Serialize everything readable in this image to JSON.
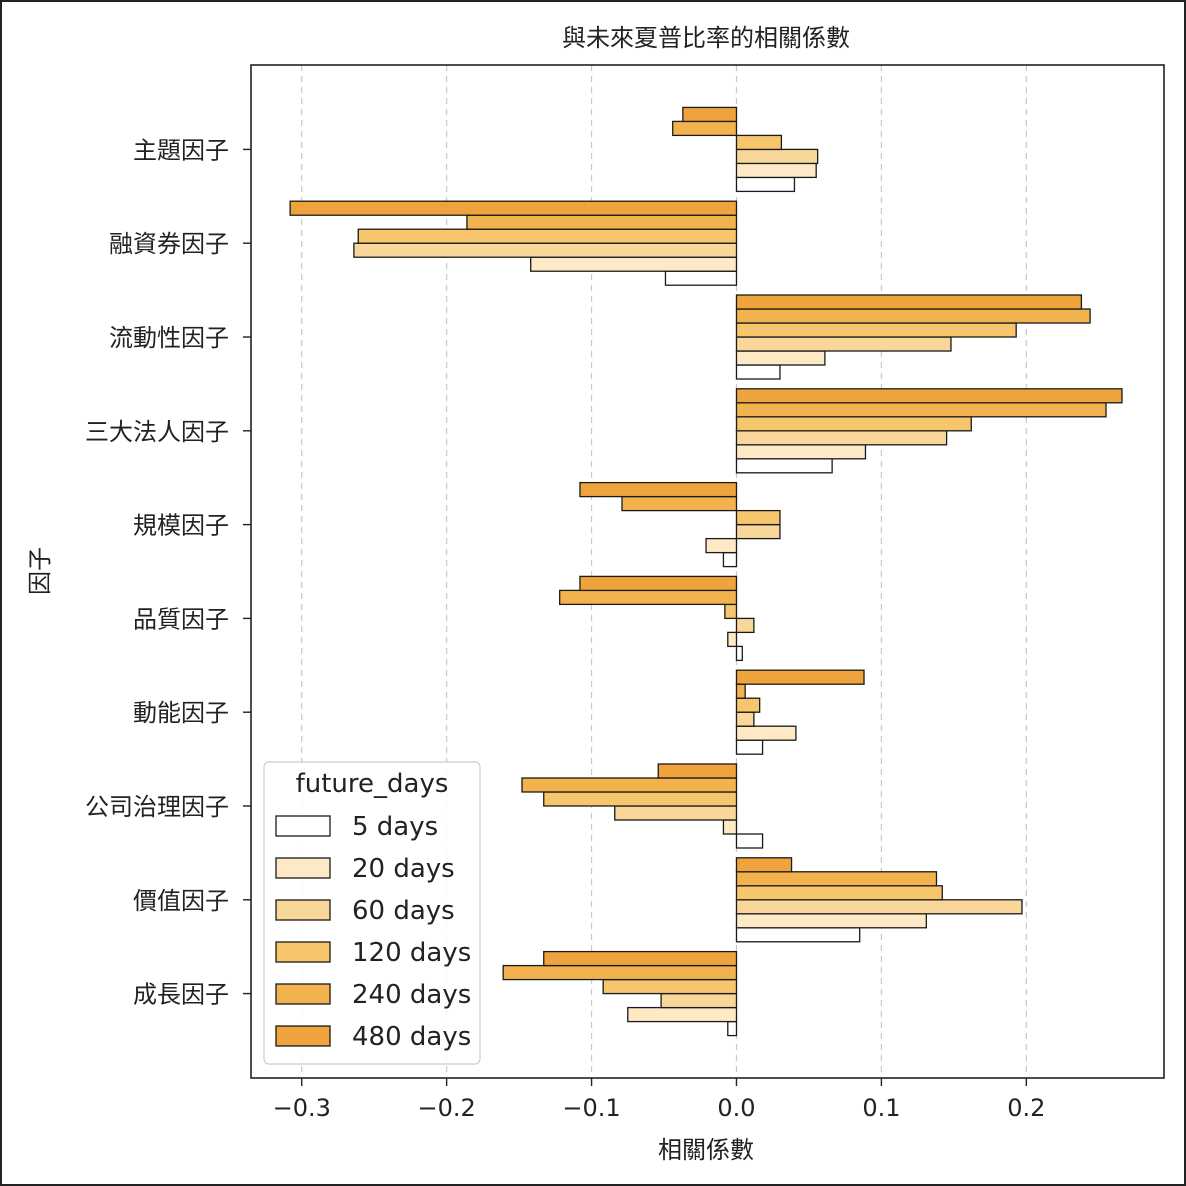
{
  "chart_data": {
    "type": "bar",
    "orientation": "horizontal",
    "title": "與未來夏普比率的相關係數",
    "xlabel": "相關係數",
    "ylabel": "因子",
    "xlim": [
      -0.335,
      0.295
    ],
    "xticks": [
      -0.3,
      -0.2,
      -0.1,
      0.0,
      0.1,
      0.2
    ],
    "xtick_labels": [
      "−0.3",
      "−0.2",
      "−0.1",
      "0.0",
      "0.1",
      "0.2"
    ],
    "grid": "x-dashed",
    "legend_title": "future_days",
    "legend_position": "lower-left",
    "categories": [
      "主題因子",
      "融資券因子",
      "流動性因子",
      "三大法人因子",
      "規模因子",
      "品質因子",
      "動能因子",
      "公司治理因子",
      "價值因子",
      "成長因子"
    ],
    "series": [
      {
        "name": "5 days",
        "color": "#ffffff",
        "values": [
          0.04,
          -0.049,
          0.03,
          0.066,
          -0.009,
          0.004,
          0.018,
          0.018,
          0.085,
          -0.006
        ]
      },
      {
        "name": "20 days",
        "color": "#fde9c5",
        "values": [
          0.055,
          -0.142,
          0.061,
          0.089,
          -0.021,
          -0.006,
          0.041,
          -0.009,
          0.131,
          -0.075
        ]
      },
      {
        "name": "60 days",
        "color": "#f9d79a",
        "values": [
          0.056,
          -0.264,
          0.148,
          0.145,
          0.03,
          0.012,
          0.012,
          -0.084,
          0.197,
          -0.052
        ]
      },
      {
        "name": "120 days",
        "color": "#f6c56c",
        "values": [
          0.031,
          -0.261,
          0.193,
          0.162,
          0.03,
          -0.008,
          0.016,
          -0.133,
          0.142,
          -0.092
        ]
      },
      {
        "name": "240 days",
        "color": "#f2b24e",
        "values": [
          -0.044,
          -0.186,
          0.244,
          0.255,
          -0.079,
          -0.122,
          0.006,
          -0.148,
          0.138,
          -0.161
        ]
      },
      {
        "name": "480 days",
        "color": "#efa33c",
        "values": [
          -0.037,
          -0.308,
          0.238,
          0.266,
          -0.108,
          -0.108,
          0.088,
          -0.054,
          0.038,
          -0.133
        ]
      }
    ]
  }
}
